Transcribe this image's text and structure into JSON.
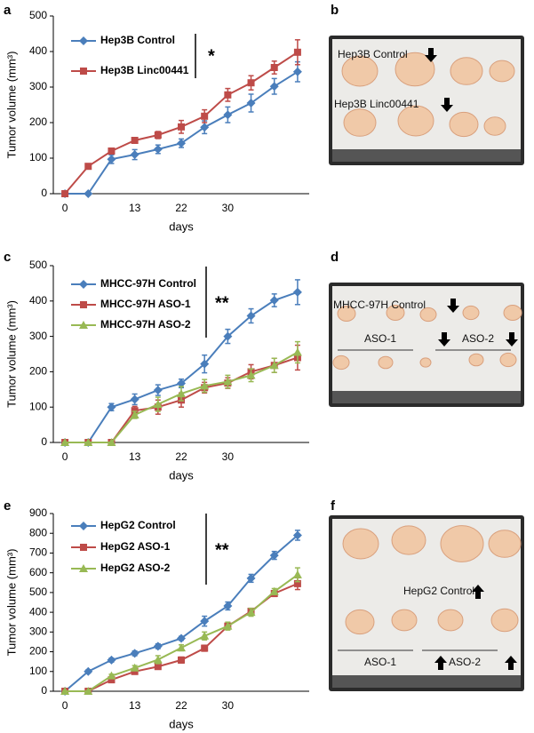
{
  "chart_data": [
    {
      "type": "line",
      "panel": "a",
      "xlabel": "days",
      "ylabel": "Tumor volume (mm³)",
      "categories": [
        "0",
        null,
        null,
        "13",
        null,
        "22",
        null,
        "30",
        null,
        null,
        null
      ],
      "ylim": [
        0,
        500
      ],
      "yticks": [
        0,
        100,
        200,
        300,
        400,
        500
      ],
      "significance": "*",
      "series": [
        {
          "name": "Hep3B Control",
          "color": "#4a7ebb",
          "marker": "diamond",
          "values": [
            0,
            0,
            97,
            110,
            125,
            142,
            187,
            222,
            255,
            302,
            343
          ],
          "errors": [
            0,
            0,
            12,
            14,
            12,
            12,
            18,
            22,
            25,
            22,
            28
          ]
        },
        {
          "name": "Hep3B Linc00441",
          "color": "#be4b48",
          "marker": "square",
          "values": [
            0,
            77,
            120,
            150,
            165,
            188,
            218,
            278,
            312,
            355,
            398
          ],
          "errors": [
            0,
            4,
            8,
            8,
            10,
            18,
            18,
            18,
            20,
            18,
            35
          ]
        }
      ]
    },
    {
      "type": "line",
      "panel": "c",
      "xlabel": "days",
      "ylabel": "Tumor volume (mm³)",
      "categories": [
        "0",
        null,
        null,
        "13",
        null,
        "22",
        null,
        "30",
        null,
        null,
        null
      ],
      "ylim": [
        0,
        500
      ],
      "yticks": [
        0,
        100,
        200,
        300,
        400,
        500
      ],
      "significance": "**",
      "series": [
        {
          "name": "MHCC-97H Control",
          "color": "#4a7ebb",
          "marker": "diamond",
          "values": [
            0,
            0,
            100,
            122,
            148,
            167,
            222,
            300,
            358,
            402,
            425
          ],
          "errors": [
            0,
            0,
            10,
            15,
            15,
            12,
            25,
            20,
            20,
            18,
            35
          ]
        },
        {
          "name": "MHCC-97H ASO-1",
          "color": "#be4b48",
          "marker": "square",
          "values": [
            0,
            0,
            0,
            90,
            100,
            120,
            155,
            168,
            200,
            218,
            240
          ],
          "errors": [
            0,
            0,
            0,
            12,
            20,
            20,
            15,
            15,
            20,
            20,
            35
          ]
        },
        {
          "name": "MHCC-97H ASO-2",
          "color": "#98b954",
          "marker": "triangle",
          "values": [
            0,
            0,
            0,
            78,
            108,
            138,
            160,
            172,
            190,
            218,
            255
          ],
          "errors": [
            0,
            0,
            0,
            10,
            20,
            20,
            18,
            18,
            18,
            20,
            30
          ]
        }
      ]
    },
    {
      "type": "line",
      "panel": "e",
      "xlabel": "days",
      "ylabel": "Tumor volume (mm³)",
      "categories": [
        "0",
        null,
        null,
        "13",
        null,
        "22",
        null,
        "30",
        null,
        null,
        null
      ],
      "ylim": [
        0,
        900
      ],
      "yticks": [
        0,
        100,
        200,
        300,
        400,
        500,
        600,
        700,
        800,
        900
      ],
      "significance": "**",
      "series": [
        {
          "name": "HepG2 Control",
          "color": "#4a7ebb",
          "marker": "diamond",
          "values": [
            0,
            100,
            158,
            192,
            228,
            268,
            355,
            432,
            572,
            688,
            790
          ],
          "errors": [
            0,
            8,
            10,
            12,
            12,
            10,
            25,
            20,
            20,
            20,
            25
          ]
        },
        {
          "name": "HepG2 ASO-1",
          "color": "#be4b48",
          "marker": "square",
          "values": [
            0,
            0,
            58,
            100,
            125,
            158,
            218,
            330,
            405,
            495,
            545
          ],
          "errors": [
            0,
            0,
            8,
            10,
            12,
            15,
            15,
            15,
            15,
            15,
            30
          ]
        },
        {
          "name": "HepG2 ASO-2",
          "color": "#98b954",
          "marker": "triangle",
          "values": [
            0,
            0,
            78,
            118,
            160,
            220,
            280,
            330,
            400,
            505,
            590
          ],
          "errors": [
            0,
            0,
            8,
            12,
            20,
            15,
            20,
            20,
            20,
            15,
            35
          ]
        }
      ]
    }
  ],
  "photos": [
    {
      "panel": "b",
      "labels": [
        "Hep3B Control",
        "Hep3B Linc00441"
      ]
    },
    {
      "panel": "d",
      "labels": [
        "MHCC-97H Control",
        "ASO-1",
        "ASO-2"
      ]
    },
    {
      "panel": "f",
      "labels": [
        "HepG2 Control",
        "ASO-1",
        "ASO-2"
      ]
    }
  ]
}
